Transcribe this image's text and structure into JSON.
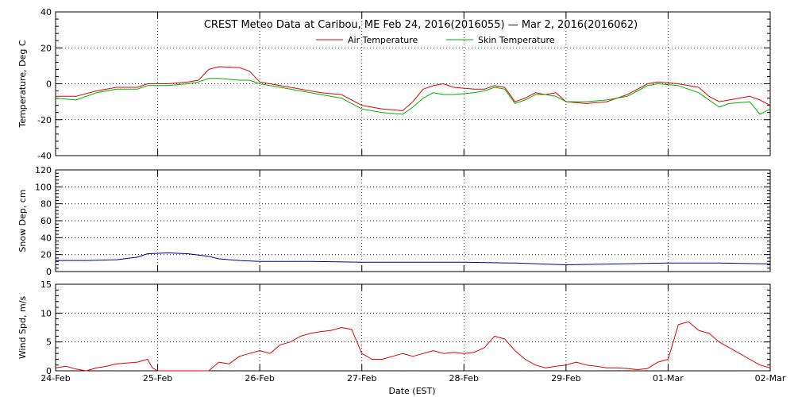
{
  "title": "CREST Meteo Data at Caribou, ME   Feb 24, 2016(2016055) — Mar  2, 2016(2016062)",
  "xlabel": "Date (EST)",
  "x_ticks": [
    "24-Feb",
    "25-Feb",
    "26-Feb",
    "27-Feb",
    "28-Feb",
    "29-Feb",
    "01-Mar",
    "02-Mar"
  ],
  "chart_data": [
    {
      "type": "line",
      "ylabel": "Temperature, Deg C",
      "ylim": [
        -40,
        40
      ],
      "yticks": [
        -40,
        -20,
        0,
        20,
        40
      ],
      "xlim": [
        0,
        7
      ],
      "grid": true,
      "legend": "top-center",
      "series": [
        {
          "name": "Air Temperature",
          "color": "#e00000",
          "points": [
            [
              0,
              -7
            ],
            [
              0.2,
              -7
            ],
            [
              0.4,
              -4
            ],
            [
              0.6,
              -2
            ],
            [
              0.8,
              -2
            ],
            [
              0.9,
              0
            ],
            [
              1.1,
              0
            ],
            [
              1.3,
              1
            ],
            [
              1.4,
              2
            ],
            [
              1.5,
              8
            ],
            [
              1.6,
              9.5
            ],
            [
              1.8,
              9
            ],
            [
              1.9,
              7
            ],
            [
              2.0,
              1
            ],
            [
              2.1,
              0
            ],
            [
              2.3,
              -2
            ],
            [
              2.6,
              -5
            ],
            [
              2.8,
              -6
            ],
            [
              3.0,
              -12
            ],
            [
              3.2,
              -14
            ],
            [
              3.4,
              -15
            ],
            [
              3.5,
              -10
            ],
            [
              3.6,
              -3
            ],
            [
              3.7,
              -1
            ],
            [
              3.8,
              0
            ],
            [
              3.9,
              -2
            ],
            [
              4.1,
              -3
            ],
            [
              4.2,
              -3
            ],
            [
              4.3,
              -1
            ],
            [
              4.4,
              -2
            ],
            [
              4.5,
              -10
            ],
            [
              4.6,
              -8
            ],
            [
              4.7,
              -5
            ],
            [
              4.8,
              -6
            ],
            [
              4.9,
              -5
            ],
            [
              5.0,
              -10
            ],
            [
              5.2,
              -11
            ],
            [
              5.4,
              -10
            ],
            [
              5.6,
              -6
            ],
            [
              5.7,
              -3
            ],
            [
              5.8,
              0
            ],
            [
              5.9,
              1
            ],
            [
              6.1,
              0
            ],
            [
              6.2,
              -1
            ],
            [
              6.3,
              -2
            ],
            [
              6.4,
              -7
            ],
            [
              6.5,
              -10
            ],
            [
              6.6,
              -9
            ],
            [
              6.8,
              -7
            ],
            [
              6.9,
              -9
            ],
            [
              7,
              -12
            ]
          ]
        },
        {
          "name": "Skin Temperature",
          "color": "#00b000",
          "points": [
            [
              0,
              -8
            ],
            [
              0.2,
              -9
            ],
            [
              0.4,
              -5
            ],
            [
              0.6,
              -3
            ],
            [
              0.8,
              -3
            ],
            [
              0.9,
              -1
            ],
            [
              1.1,
              -1
            ],
            [
              1.3,
              0
            ],
            [
              1.4,
              1
            ],
            [
              1.5,
              3
            ],
            [
              1.6,
              3
            ],
            [
              1.8,
              2
            ],
            [
              1.9,
              2
            ],
            [
              2.0,
              0
            ],
            [
              2.1,
              -1
            ],
            [
              2.3,
              -3
            ],
            [
              2.6,
              -6
            ],
            [
              2.8,
              -8
            ],
            [
              3.0,
              -14
            ],
            [
              3.2,
              -16
            ],
            [
              3.4,
              -17
            ],
            [
              3.5,
              -13
            ],
            [
              3.6,
              -8
            ],
            [
              3.7,
              -5
            ],
            [
              3.8,
              -6
            ],
            [
              3.9,
              -6
            ],
            [
              4.1,
              -5
            ],
            [
              4.2,
              -4
            ],
            [
              4.3,
              -2
            ],
            [
              4.4,
              -3
            ],
            [
              4.5,
              -11
            ],
            [
              4.6,
              -9
            ],
            [
              4.7,
              -6
            ],
            [
              4.8,
              -6
            ],
            [
              4.9,
              -7
            ],
            [
              5.0,
              -10
            ],
            [
              5.2,
              -10
            ],
            [
              5.4,
              -9
            ],
            [
              5.6,
              -7
            ],
            [
              5.7,
              -4
            ],
            [
              5.8,
              -1
            ],
            [
              5.9,
              0
            ],
            [
              6.1,
              -1
            ],
            [
              6.2,
              -3
            ],
            [
              6.3,
              -5
            ],
            [
              6.4,
              -9
            ],
            [
              6.5,
              -13
            ],
            [
              6.6,
              -11
            ],
            [
              6.8,
              -10
            ],
            [
              6.9,
              -17
            ],
            [
              7,
              -14
            ]
          ]
        }
      ]
    },
    {
      "type": "line",
      "ylabel": "Snow Dep, cm",
      "ylim": [
        0,
        120
      ],
      "yticks": [
        0,
        20,
        40,
        60,
        80,
        100,
        120
      ],
      "xlim": [
        0,
        7
      ],
      "grid": true,
      "series": [
        {
          "color": "#000090",
          "points": [
            [
              0,
              13
            ],
            [
              0.3,
              13
            ],
            [
              0.6,
              14
            ],
            [
              0.8,
              17
            ],
            [
              0.9,
              21
            ],
            [
              1.1,
              22
            ],
            [
              1.3,
              21
            ],
            [
              1.5,
              18
            ],
            [
              1.6,
              15
            ],
            [
              1.8,
              13
            ],
            [
              2.0,
              12
            ],
            [
              2.5,
              12
            ],
            [
              3.0,
              11
            ],
            [
              3.5,
              11
            ],
            [
              4.0,
              11
            ],
            [
              4.5,
              10
            ],
            [
              5.0,
              8
            ],
            [
              5.5,
              9
            ],
            [
              6.0,
              10
            ],
            [
              6.5,
              10
            ],
            [
              7,
              9
            ]
          ]
        }
      ]
    },
    {
      "type": "line",
      "ylabel": "Wind Spd, m/s",
      "ylim": [
        0,
        15
      ],
      "yticks": [
        0,
        5,
        10,
        15
      ],
      "xlim": [
        0,
        7
      ],
      "grid": true,
      "series": [
        {
          "color": "#e00000",
          "points": [
            [
              0,
              0.5
            ],
            [
              0.1,
              0.8
            ],
            [
              0.2,
              0.3
            ],
            [
              0.3,
              0
            ],
            [
              0.4,
              0.5
            ],
            [
              0.5,
              0.8
            ],
            [
              0.6,
              1.2
            ],
            [
              0.8,
              1.5
            ],
            [
              0.9,
              2
            ],
            [
              0.95,
              0.5
            ],
            [
              1.0,
              0
            ],
            [
              1.1,
              0
            ],
            [
              1.2,
              0
            ],
            [
              1.4,
              0
            ],
            [
              1.5,
              0
            ],
            [
              1.6,
              1.5
            ],
            [
              1.7,
              1.2
            ],
            [
              1.8,
              2.5
            ],
            [
              1.9,
              3
            ],
            [
              2.0,
              3.5
            ],
            [
              2.1,
              3
            ],
            [
              2.2,
              4.5
            ],
            [
              2.3,
              5
            ],
            [
              2.4,
              6
            ],
            [
              2.5,
              6.5
            ],
            [
              2.6,
              6.8
            ],
            [
              2.7,
              7
            ],
            [
              2.8,
              7.5
            ],
            [
              2.9,
              7.2
            ],
            [
              3.0,
              3
            ],
            [
              3.1,
              2
            ],
            [
              3.2,
              2
            ],
            [
              3.3,
              2.5
            ],
            [
              3.4,
              3
            ],
            [
              3.5,
              2.5
            ],
            [
              3.6,
              3
            ],
            [
              3.7,
              3.5
            ],
            [
              3.8,
              3
            ],
            [
              3.9,
              3.2
            ],
            [
              4.0,
              3
            ],
            [
              4.1,
              3.2
            ],
            [
              4.2,
              4
            ],
            [
              4.3,
              6
            ],
            [
              4.4,
              5.5
            ],
            [
              4.5,
              3.5
            ],
            [
              4.6,
              2
            ],
            [
              4.7,
              1
            ],
            [
              4.8,
              0.5
            ],
            [
              4.9,
              0.8
            ],
            [
              5.0,
              1
            ],
            [
              5.1,
              1.5
            ],
            [
              5.2,
              1
            ],
            [
              5.3,
              0.8
            ],
            [
              5.4,
              0.5
            ],
            [
              5.5,
              0.5
            ],
            [
              5.6,
              0.4
            ],
            [
              5.7,
              0.2
            ],
            [
              5.8,
              0.4
            ],
            [
              5.9,
              1.5
            ],
            [
              6.0,
              2
            ],
            [
              6.05,
              5
            ],
            [
              6.1,
              8
            ],
            [
              6.2,
              8.5
            ],
            [
              6.3,
              7
            ],
            [
              6.4,
              6.5
            ],
            [
              6.5,
              5
            ],
            [
              6.6,
              4
            ],
            [
              6.7,
              3
            ],
            [
              6.8,
              2
            ],
            [
              6.9,
              1
            ],
            [
              7,
              0.5
            ]
          ]
        }
      ]
    }
  ]
}
